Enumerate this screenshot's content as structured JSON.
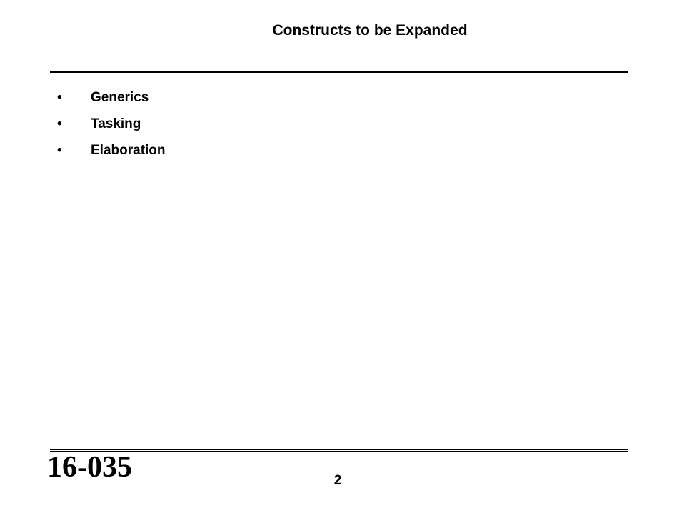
{
  "title": "Constructs to be Expanded",
  "bullets": [
    "Generics",
    "Tasking",
    "Elaboration"
  ],
  "footer": {
    "code": "16-035",
    "page": "2"
  }
}
